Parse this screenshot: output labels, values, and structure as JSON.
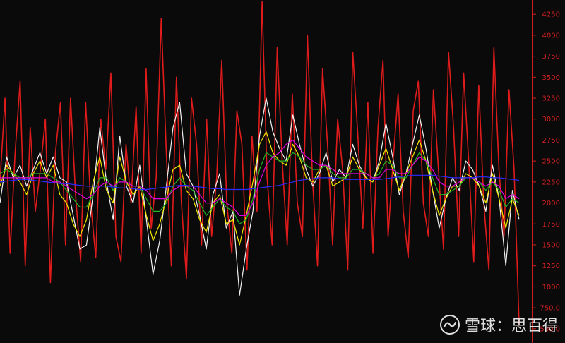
{
  "chart_data": {
    "type": "line",
    "title": "",
    "xlabel": "",
    "ylabel": "",
    "ylim": [
      330,
      4420
    ],
    "y_ticks": [
      500,
      750,
      1000,
      1250,
      1500,
      1750,
      2000,
      2250,
      2500,
      2750,
      3000,
      3250,
      3500,
      3750,
      4000,
      4250
    ],
    "y_tick_labels": [
      "500.0",
      "750.0",
      "1000",
      "1250",
      "1500",
      "1750",
      "2000",
      "2250",
      "2500",
      "2750",
      "3000",
      "3250",
      "3500",
      "3750",
      "4000",
      "4250"
    ],
    "axis_position": "right",
    "grid": false,
    "legend": "none",
    "series": [
      {
        "color": "#e01b1b",
        "values": [
          2250,
          3250,
          1400,
          2600,
          3450,
          1250,
          2900,
          1900,
          2400,
          3000,
          1050,
          2600,
          3200,
          1500,
          3250,
          2100,
          1300,
          3200,
          2000,
          1350,
          3000,
          2400,
          3550,
          1600,
          1300,
          2700,
          2000,
          3150,
          1400,
          3600,
          1700,
          2300,
          4200,
          2600,
          1250,
          3500,
          2000,
          1100,
          3250,
          2700,
          1500,
          3000,
          1600,
          2300,
          3700,
          2000,
          1400,
          3100,
          2700,
          1200,
          2800,
          1900,
          4400,
          2300,
          1500,
          3850,
          2500,
          1500,
          3300,
          2000,
          1600,
          4000,
          2300,
          1250,
          3600,
          2700,
          1500,
          3000,
          2400,
          1200,
          3800,
          2800,
          1700,
          3200,
          1400,
          2900,
          3700,
          1600,
          2500,
          3300,
          1900,
          1350,
          3100,
          3450,
          2000,
          1600,
          3350,
          2400,
          1450,
          3800,
          2900,
          1600,
          3550,
          2500,
          1300,
          3400,
          2000,
          1200,
          3850,
          2400,
          1600,
          3350,
          2400,
          550
        ],
        "name": ""
      },
      {
        "color": "#f2f2f2",
        "values": [
          2000,
          2550,
          2300,
          2450,
          2200,
          2400,
          2600,
          2350,
          2550,
          2300,
          2250,
          1850,
          1450,
          1500,
          2100,
          2900,
          2250,
          1800,
          2800,
          2200,
          2000,
          2450,
          1800,
          1150,
          1550,
          2200,
          2900,
          3200,
          2350,
          2200,
          1850,
          1450,
          2100,
          2350,
          1700,
          1900,
          900,
          1450,
          1900,
          2800,
          3250,
          2850,
          2650,
          2500,
          3050,
          2700,
          2400,
          2200,
          2350,
          2600,
          2250,
          2400,
          2300,
          2700,
          2450,
          2300,
          2250,
          2500,
          2950,
          2550,
          2100,
          2350,
          2700,
          3050,
          2650,
          2150,
          1700,
          2050,
          2300,
          2150,
          2500,
          2400,
          2200,
          1900,
          2450,
          2050,
          1250,
          2150,
          1800
        ],
        "name": ""
      },
      {
        "color": "#f2e600",
        "values": [
          2200,
          2450,
          2350,
          2250,
          2100,
          2350,
          2500,
          2300,
          2450,
          2100,
          2000,
          1750,
          1600,
          1800,
          2250,
          2550,
          2150,
          2000,
          2550,
          2250,
          2100,
          2200,
          1850,
          1550,
          1750,
          2050,
          2400,
          2450,
          2150,
          2050,
          1800,
          1650,
          2000,
          2100,
          1750,
          1800,
          1500,
          1850,
          2250,
          2700,
          2850,
          2600,
          2500,
          2450,
          2700,
          2550,
          2300,
          2250,
          2400,
          2450,
          2200,
          2250,
          2300,
          2550,
          2400,
          2300,
          2250,
          2450,
          2650,
          2400,
          2150,
          2350,
          2550,
          2750,
          2500,
          2150,
          1850,
          2050,
          2200,
          2200,
          2350,
          2300,
          2200,
          2000,
          2350,
          2050,
          1700,
          2050,
          1850
        ],
        "name": ""
      },
      {
        "color": "#22b422",
        "values": [
          2350,
          2400,
          2350,
          2300,
          2300,
          2350,
          2350,
          2350,
          2300,
          2250,
          2150,
          2050,
          1950,
          1950,
          2100,
          2300,
          2300,
          2150,
          2300,
          2250,
          2200,
          2200,
          2050,
          1900,
          1900,
          2000,
          2200,
          2300,
          2200,
          2150,
          2000,
          1850,
          1950,
          2050,
          1950,
          1900,
          1750,
          1800,
          2050,
          2400,
          2600,
          2550,
          2500,
          2500,
          2600,
          2550,
          2450,
          2400,
          2400,
          2450,
          2350,
          2300,
          2300,
          2400,
          2400,
          2350,
          2300,
          2350,
          2500,
          2450,
          2300,
          2300,
          2450,
          2600,
          2500,
          2300,
          2100,
          2100,
          2150,
          2200,
          2300,
          2300,
          2250,
          2150,
          2250,
          2150,
          1950,
          2050,
          2000
        ],
        "name": ""
      },
      {
        "color": "#e000e0",
        "values": [
          2300,
          2300,
          2300,
          2300,
          2300,
          2300,
          2300,
          2300,
          2250,
          2250,
          2200,
          2150,
          2100,
          2050,
          2100,
          2200,
          2250,
          2200,
          2250,
          2250,
          2200,
          2200,
          2150,
          2050,
          2050,
          2050,
          2150,
          2200,
          2200,
          2200,
          2100,
          2000,
          2000,
          2050,
          2000,
          1950,
          1850,
          1850,
          2000,
          2250,
          2450,
          2550,
          2600,
          2700,
          2750,
          2650,
          2550,
          2500,
          2450,
          2450,
          2400,
          2350,
          2350,
          2350,
          2350,
          2350,
          2300,
          2300,
          2400,
          2400,
          2350,
          2350,
          2450,
          2550,
          2500,
          2400,
          2250,
          2200,
          2200,
          2250,
          2300,
          2300,
          2250,
          2200,
          2250,
          2200,
          2050,
          2100,
          2050
        ],
        "name": ""
      },
      {
        "color": "#2a2aff",
        "values": [
          2250,
          2260,
          2270,
          2280,
          2280,
          2270,
          2260,
          2250,
          2240,
          2230,
          2230,
          2220,
          2210,
          2200,
          2200,
          2200,
          2200,
          2190,
          2180,
          2180,
          2170,
          2160,
          2160,
          2170,
          2180,
          2190,
          2200,
          2210,
          2210,
          2200,
          2190,
          2180,
          2170,
          2170,
          2160,
          2160,
          2160,
          2160,
          2170,
          2180,
          2190,
          2200,
          2210,
          2230,
          2250,
          2270,
          2280,
          2290,
          2300,
          2300,
          2300,
          2290,
          2280,
          2280,
          2280,
          2280,
          2280,
          2280,
          2290,
          2300,
          2310,
          2320,
          2330,
          2330,
          2330,
          2330,
          2320,
          2310,
          2300,
          2300,
          2300,
          2300,
          2310,
          2310,
          2300,
          2300,
          2290,
          2280,
          2270
        ],
        "name": ""
      }
    ]
  },
  "watermark": {
    "text": "雪球：思百得",
    "logo": "snowball-logo"
  }
}
